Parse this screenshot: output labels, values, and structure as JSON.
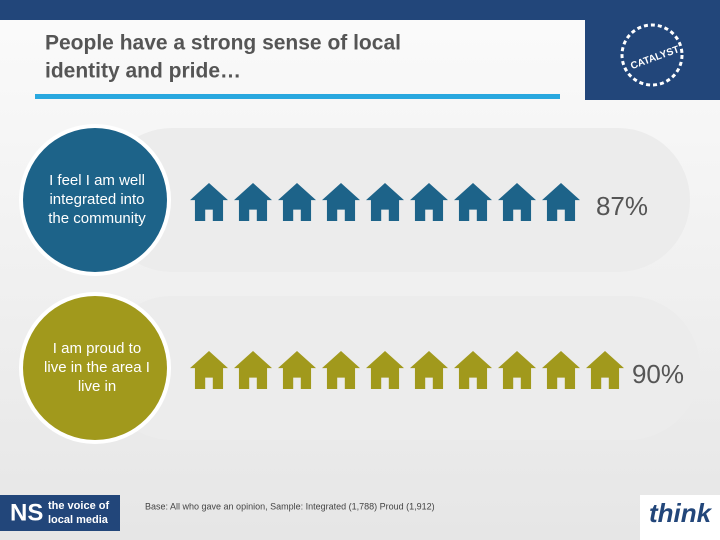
{
  "header": {
    "title_line1": "People have a strong sense of local",
    "title_line2": "identity and pride…",
    "logo": "CATALYST"
  },
  "rows": [
    {
      "label_lines": [
        "I feel I am well",
        "integrated into",
        "the community"
      ],
      "value": "87%",
      "color": "#1d6389"
    },
    {
      "label_lines": [
        "I am proud to",
        "live in the area I",
        "live in"
      ],
      "value": "90%",
      "color": "#a1991c"
    }
  ],
  "footer": {
    "base": "Base: All who gave an opinion, Sample: Integrated (1,788) Proud (1,912)",
    "ns": "NS",
    "ns_line1": "the voice of",
    "ns_line2": "local media",
    "think": "think"
  }
}
